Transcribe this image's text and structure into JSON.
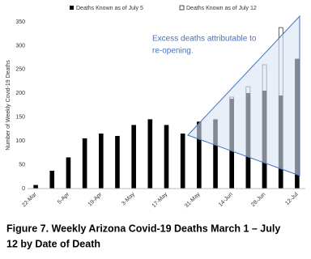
{
  "chart_data": {
    "type": "bar",
    "legend": [
      "Deaths Known as of July 5",
      "Deaths Known as of July 12"
    ],
    "ylabel": "Number of Weekly Covid-19 Deaths",
    "categories": [
      "22-Mar",
      null,
      "5-Apr",
      null,
      "19-Apr",
      null,
      "3-May",
      null,
      "17-May",
      null,
      "31-May",
      null,
      "14-Jun",
      null,
      "28-Jun",
      null,
      "12-Jul"
    ],
    "series": [
      {
        "name": "Deaths Known as of July 5",
        "color": "#000000",
        "values": [
          7,
          37,
          65,
          105,
          115,
          110,
          133,
          145,
          133,
          115,
          140,
          145,
          188,
          200,
          205,
          195,
          272
        ]
      },
      {
        "name": "Deaths Known as of July 12",
        "color": "#ffffff",
        "values": [
          null,
          null,
          null,
          null,
          null,
          null,
          null,
          null,
          null,
          null,
          null,
          null,
          192,
          214,
          260,
          338,
          null
        ]
      }
    ],
    "ylim": [
      0,
      350
    ],
    "yticks": [
      0,
      50,
      100,
      150,
      200,
      250,
      300,
      350
    ],
    "grid": false,
    "annotation": [
      "Excess deaths attributable to",
      "re-opening."
    ],
    "caption": [
      "Figure 7. Weekly Arizona Covid-19 Deaths March 1 – July",
      "12 by Date of Death"
    ]
  }
}
